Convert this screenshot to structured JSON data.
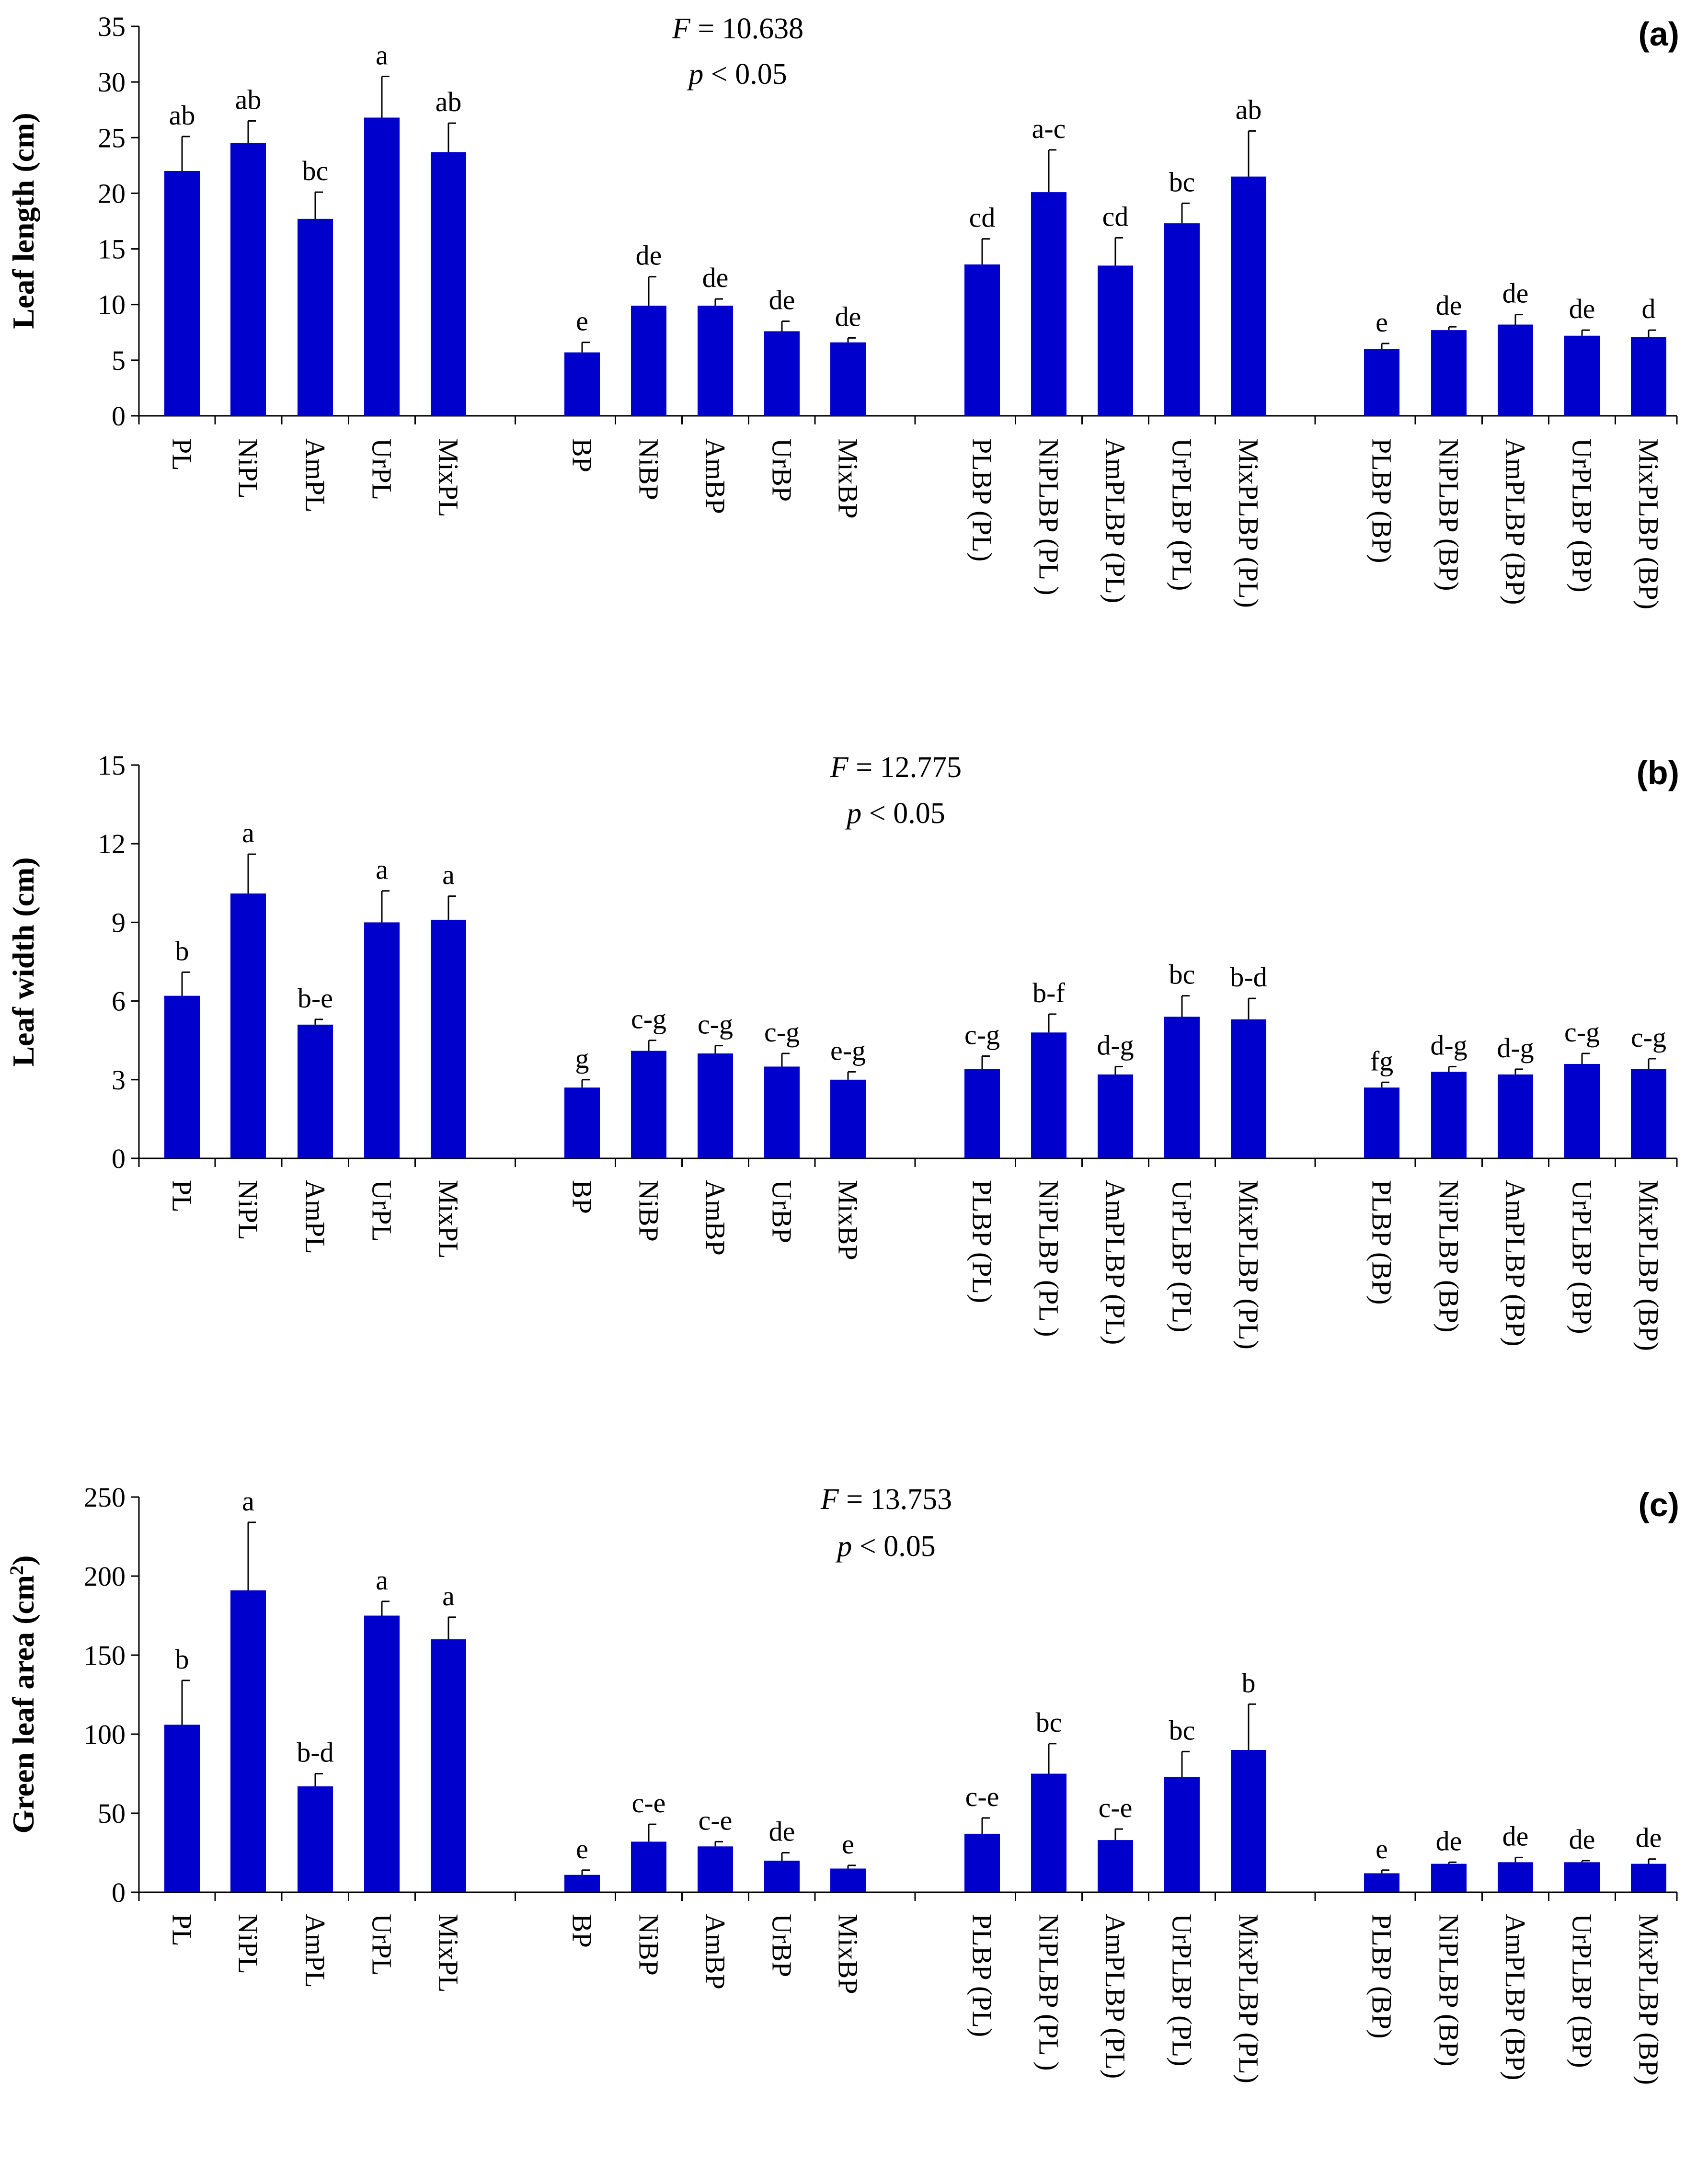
{
  "colors": {
    "bar": "#0000CC",
    "axis": "#000000"
  },
  "chart_data": [
    {
      "type": "bar",
      "panel": "(a)",
      "title": "",
      "xlabel": "",
      "ylabel": "Leaf length (cm)",
      "ylim": [
        0,
        35
      ],
      "yticks": [
        0,
        5,
        10,
        15,
        20,
        25,
        30,
        35
      ],
      "stats": {
        "f_symbol": "F",
        "f_value": " = 10.638",
        "p_symbol": "p",
        "p_value": " < 0.05"
      },
      "categories": [
        "PL",
        "NiPL",
        "AmPL",
        "UrPL",
        "MixPL",
        "BP",
        "NiBP",
        "AmBP",
        "UrBP",
        "MixBP",
        "PLBP (PL)",
        "NiPLBP (PL )",
        "AmPLBP (PL)",
        "UrPLBP (PL)",
        "MixPLBP (PL)",
        "PLBP (BP)",
        "NiPLBP (BP)",
        "AmPLBP (BP)",
        "UrPLBP (BP)",
        "MixPLBP (BP)"
      ],
      "values": [
        22.0,
        24.5,
        17.7,
        26.8,
        23.7,
        5.7,
        9.9,
        9.9,
        7.6,
        6.6,
        13.6,
        20.1,
        13.5,
        17.3,
        21.5,
        6.0,
        7.7,
        8.2,
        7.2,
        7.1
      ],
      "errors": [
        3.1,
        2.0,
        2.4,
        3.7,
        2.6,
        0.9,
        2.6,
        0.6,
        0.9,
        0.4,
        2.3,
        3.8,
        2.5,
        1.8,
        4.1,
        0.5,
        0.3,
        0.9,
        0.5,
        0.6
      ],
      "letters": [
        "ab",
        "ab",
        "bc",
        "a",
        "ab",
        "e",
        "de",
        "de",
        "de",
        "de",
        "cd",
        "a-c",
        "cd",
        "bc",
        "ab",
        "e",
        "de",
        "de",
        "de",
        "d"
      ]
    },
    {
      "type": "bar",
      "panel": "(b)",
      "title": "",
      "xlabel": "",
      "ylabel": "Leaf width (cm)",
      "ylim": [
        0,
        15
      ],
      "yticks": [
        0,
        3,
        6,
        9,
        12,
        15
      ],
      "stats": {
        "f_symbol": "F",
        "f_value": " = 12.775",
        "p_symbol": "p",
        "p_value": " < 0.05"
      },
      "categories": [
        "PL",
        "NiPL",
        "AmPL",
        "UrPL",
        "MixPL",
        "BP",
        "NiBP",
        "AmBP",
        "UrBP",
        "MixBP",
        "PLBP (PL)",
        "NiPLBP (PL )",
        "AmPLBP (PL)",
        "UrPLBP (PL)",
        "MixPLBP (PL)",
        "PLBP (BP)",
        "NiPLBP (BP)",
        "AmPLBP (BP)",
        "UrPLBP (BP)",
        "MixPLBP (BP)"
      ],
      "values": [
        6.2,
        10.1,
        5.1,
        9.0,
        9.1,
        2.7,
        4.1,
        4.0,
        3.5,
        3.0,
        3.4,
        4.8,
        3.2,
        5.4,
        5.3,
        2.7,
        3.3,
        3.2,
        3.6,
        3.4
      ],
      "errors": [
        0.9,
        1.5,
        0.2,
        1.2,
        0.9,
        0.3,
        0.4,
        0.3,
        0.5,
        0.3,
        0.5,
        0.7,
        0.3,
        0.8,
        0.8,
        0.2,
        0.2,
        0.2,
        0.4,
        0.4
      ],
      "letters": [
        "b",
        "a",
        "b-e",
        "a",
        "a",
        "g",
        "c-g",
        "c-g",
        "c-g",
        "e-g",
        "c-g",
        "b-f",
        "d-g",
        "bc",
        "b-d",
        "fg",
        "d-g",
        "d-g",
        "c-g",
        "c-g"
      ]
    },
    {
      "type": "bar",
      "panel": "(c)",
      "title": "",
      "xlabel": "",
      "ylabel": "Green leaf area (cm",
      "ylabel_sup": "2",
      "ylabel_end": ")",
      "ylim": [
        0,
        250
      ],
      "yticks": [
        0,
        50,
        100,
        150,
        200,
        250
      ],
      "stats": {
        "f_symbol": "F",
        "f_value": " = 13.753",
        "p_symbol": "p",
        "p_value": " < 0.05"
      },
      "categories": [
        "PL",
        "NiPL",
        "AmPL",
        "UrPL",
        "MixPL",
        "BP",
        "NiBP",
        "AmBP",
        "UrBP",
        "MixBP",
        "PLBP (PL)",
        "NiPLBP (PL )",
        "AmPLBP (PL)",
        "UrPLBP (PL)",
        "MixPLBP (PL)",
        "PLBP (BP)",
        "NiPLBP (BP)",
        "AmPLBP (BP)",
        "UrPLBP (BP)",
        "MixPLBP (BP)"
      ],
      "values": [
        106,
        191,
        67,
        175,
        160,
        11,
        32,
        29,
        20,
        15,
        37,
        75,
        33,
        73,
        90,
        12,
        18,
        19,
        19,
        18
      ],
      "errors": [
        28,
        43,
        8,
        9,
        14,
        3,
        11,
        3,
        5,
        2,
        10,
        19,
        7,
        16,
        29,
        2,
        1,
        3,
        1,
        3
      ],
      "letters": [
        "b",
        "a",
        "b-d",
        "a",
        "a",
        "e",
        "c-e",
        "c-e",
        "de",
        "e",
        "c-e",
        "bc",
        "c-e",
        "bc",
        "b",
        "e",
        "de",
        "de",
        "de",
        "de"
      ]
    }
  ]
}
